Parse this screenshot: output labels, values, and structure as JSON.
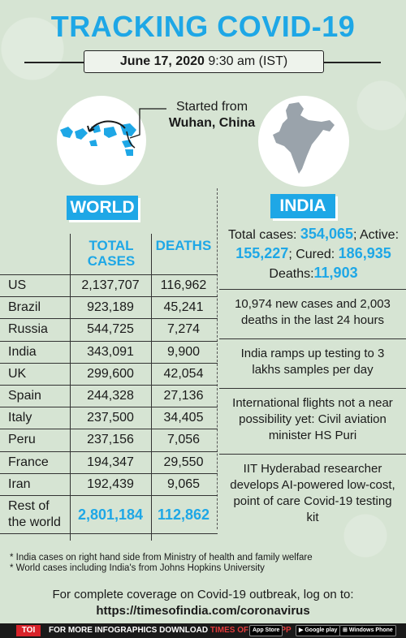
{
  "header": {
    "title": "TRACKING COVID-19",
    "date": "June 17, 2020",
    "time": "9:30 am (IST)"
  },
  "origin": {
    "line1": "Started from",
    "city": "Wuhan, China"
  },
  "world": {
    "label": "WORLD",
    "col_total_1": "TOTAL",
    "col_total_2": "CASES",
    "col_deaths": "DEATHS",
    "rows": [
      {
        "country": "US",
        "cases": "2,137,707",
        "deaths": "116,962"
      },
      {
        "country": "Brazil",
        "cases": "923,189",
        "deaths": "45,241"
      },
      {
        "country": "Russia",
        "cases": "544,725",
        "deaths": "7,274"
      },
      {
        "country": "India",
        "cases": "343,091",
        "deaths": "9,900"
      },
      {
        "country": "UK",
        "cases": "299,600",
        "deaths": "42,054"
      },
      {
        "country": "Spain",
        "cases": "244,328",
        "deaths": "27,136"
      },
      {
        "country": "Italy",
        "cases": "237,500",
        "deaths": "34,405"
      },
      {
        "country": "Peru",
        "cases": "237,156",
        "deaths": "7,056"
      },
      {
        "country": "France",
        "cases": "194,347",
        "deaths": "29,550"
      },
      {
        "country": "Iran",
        "cases": "192,439",
        "deaths": "9,065"
      }
    ],
    "rest": {
      "country_1": "Rest of",
      "country_2": "the world",
      "cases": "2,801,184",
      "deaths": "112,862"
    }
  },
  "india": {
    "label": "INDIA",
    "total_label": "Total cases: ",
    "total": "354,065",
    "active_label": "; Active:",
    "active": "155,227",
    "cured_label": "; Cured: ",
    "cured": "186,935",
    "deaths_label": "Deaths:",
    "deaths": "11,903",
    "news": [
      "10,974 new cases and 2,003 deaths in the last 24 hours",
      "India ramps up testing to 3 lakhs samples per day",
      "International flights not a near possibility yet: Civil aviation minister HS Puri",
      "IIT Hyderabad researcher develops AI-powered low-cost, point of care Covid-19 testing kit"
    ]
  },
  "notes": [
    "* India cases on right hand side from Ministry of health and family welfare",
    "* World cases including India's from Johns Hopkins University"
  ],
  "coverage": {
    "line": "For complete coverage on Covid-19 outbreak, log on to:",
    "url": "https://timesofindia.com/coronavirus"
  },
  "footer": {
    "logo": "TOI",
    "text_a": "FOR MORE  INFOGRAPHICS DOWNLOAD ",
    "text_b": "TIMES OF INDIA  APP",
    "app_store": "App Store",
    "google_play": "Google play",
    "windows": "Windows Phone"
  },
  "colors": {
    "accent": "#1ea7e6",
    "background": "#d6e4d3",
    "logo_red": "#d8232a"
  }
}
